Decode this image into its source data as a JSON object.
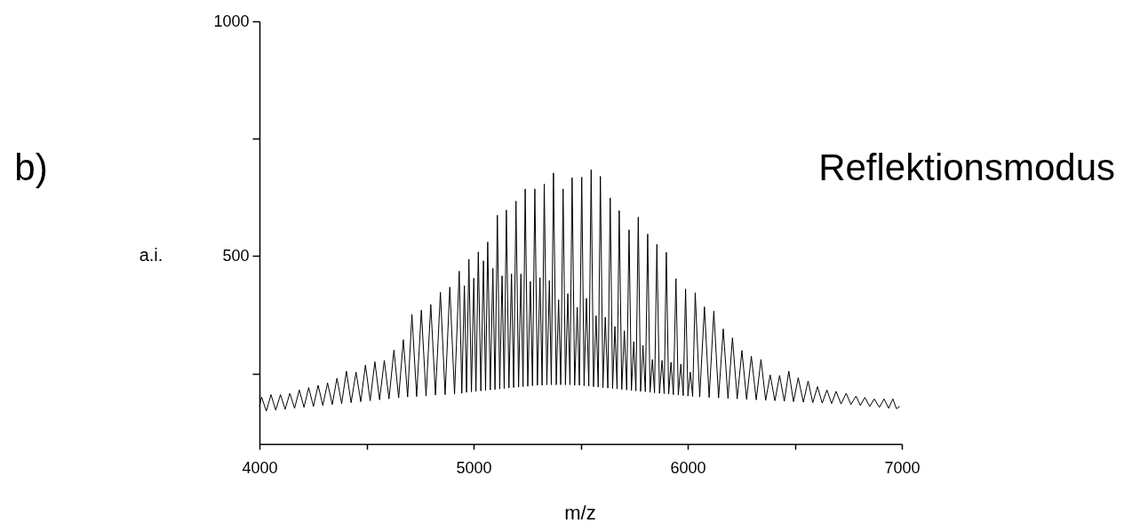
{
  "chart_data": {
    "type": "line",
    "annotations": [
      "b)",
      "Reflektionsmodus"
    ],
    "xlabel": "m/z",
    "ylabel": "a.i.",
    "xlim": [
      4000,
      7000
    ],
    "xticks": [
      4000,
      {
        "value": 4500,
        "label": null
      },
      5000,
      {
        "value": 5500,
        "label": null
      },
      6000,
      {
        "value": 6500,
        "label": null
      },
      7000
    ],
    "ylim": [
      100,
      1000
    ],
    "yticks": [
      {
        "value": 250,
        "label": null
      },
      500,
      {
        "value": 750,
        "label": null
      },
      1000
    ],
    "grid": false,
    "x": [
      4000,
      4010,
      4032,
      4054,
      4076,
      4098,
      4120,
      4142,
      4164,
      4186,
      4208,
      4230,
      4252,
      4274,
      4296,
      4318,
      4340,
      4362,
      4384,
      4406,
      4428,
      4451,
      4473,
      4495,
      4517,
      4539,
      4561,
      4583,
      4605,
      4628,
      4650,
      4672,
      4692,
      4712,
      4734,
      4756,
      4778,
      4800,
      4822,
      4845,
      4867,
      4889,
      4911,
      4933,
      4945,
      4957,
      4967,
      4978,
      4990,
      5001,
      5011,
      5022,
      5034,
      5046,
      5056,
      5066,
      5078,
      5090,
      5100,
      5111,
      5122,
      5133,
      5143,
      5153,
      5165,
      5177,
      5187,
      5198,
      5210,
      5221,
      5231,
      5241,
      5253,
      5265,
      5275,
      5286,
      5298,
      5310,
      5320,
      5330,
      5342,
      5354,
      5363,
      5373,
      5386,
      5397,
      5407,
      5418,
      5429,
      5440,
      5450,
      5460,
      5472,
      5484,
      5494,
      5505,
      5516,
      5527,
      5538,
      5549,
      5560,
      5572,
      5582,
      5592,
      5604,
      5615,
      5627,
      5638,
      5649,
      5660,
      5670,
      5680,
      5692,
      5704,
      5715,
      5726,
      5737,
      5748,
      5758,
      5769,
      5780,
      5791,
      5802,
      5813,
      5824,
      5835,
      5845,
      5856,
      5868,
      5880,
      5890,
      5900,
      5911,
      5922,
      5933,
      5945,
      5956,
      5968,
      5979,
      5990,
      6001,
      6012,
      6023,
      6035,
      6056,
      6078,
      6100,
      6122,
      6144,
      6166,
      6188,
      6209,
      6231,
      6253,
      6275,
      6297,
      6320,
      6342,
      6364,
      6385,
      6407,
      6429,
      6451,
      6472,
      6494,
      6516,
      6540,
      6562,
      6584,
      6606,
      6628,
      6650,
      6672,
      6693,
      6716,
      6740,
      6762,
      6786,
      6806,
      6827,
      6850,
      6871,
      6895,
      6917,
      6938,
      6958,
      6975,
      6990
    ],
    "series": [
      {
        "color": "#000000",
        "values": [
          180,
          200,
          170,
          205,
          172,
          205,
          174,
          208,
          176,
          215,
          178,
          220,
          180,
          225,
          182,
          230,
          184,
          240,
          186,
          255,
          188,
          253,
          190,
          268,
          192,
          275,
          194,
          278,
          196,
          300,
          198,
          322,
          200,
          376,
          201,
          385,
          202,
          397,
          204,
          423,
          205,
          434,
          206,
          468,
          208,
          437,
          210,
          493,
          211,
          453,
          212,
          509,
          213,
          490,
          214,
          530,
          215,
          474,
          216,
          587,
          217,
          458,
          218,
          598,
          219,
          462,
          220,
          617,
          221,
          462,
          222,
          643,
          223,
          446,
          224,
          643,
          225,
          454,
          225,
          654,
          226,
          448,
          226,
          677,
          226,
          407,
          226,
          643,
          226,
          420,
          226,
          667,
          225,
          391,
          225,
          668,
          224,
          410,
          223,
          684,
          222,
          373,
          221,
          670,
          220,
          370,
          219,
          624,
          218,
          350,
          217,
          597,
          216,
          341,
          215,
          556,
          214,
          318,
          213,
          583,
          212,
          310,
          211,
          547,
          210,
          280,
          209,
          525,
          208,
          278,
          207,
          508,
          206,
          274,
          205,
          452,
          204,
          270,
          203,
          430,
          202,
          253,
          201,
          422,
          200,
          392,
          199,
          383,
          198,
          345,
          197,
          326,
          196,
          299,
          195,
          287,
          194,
          280,
          193,
          247,
          192,
          246,
          191,
          255,
          190,
          241,
          189,
          234,
          188,
          222,
          187,
          215,
          186,
          212,
          185,
          208,
          184,
          202,
          182,
          199,
          180,
          196,
          178,
          196,
          176,
          196,
          175,
          180
        ]
      }
    ]
  }
}
